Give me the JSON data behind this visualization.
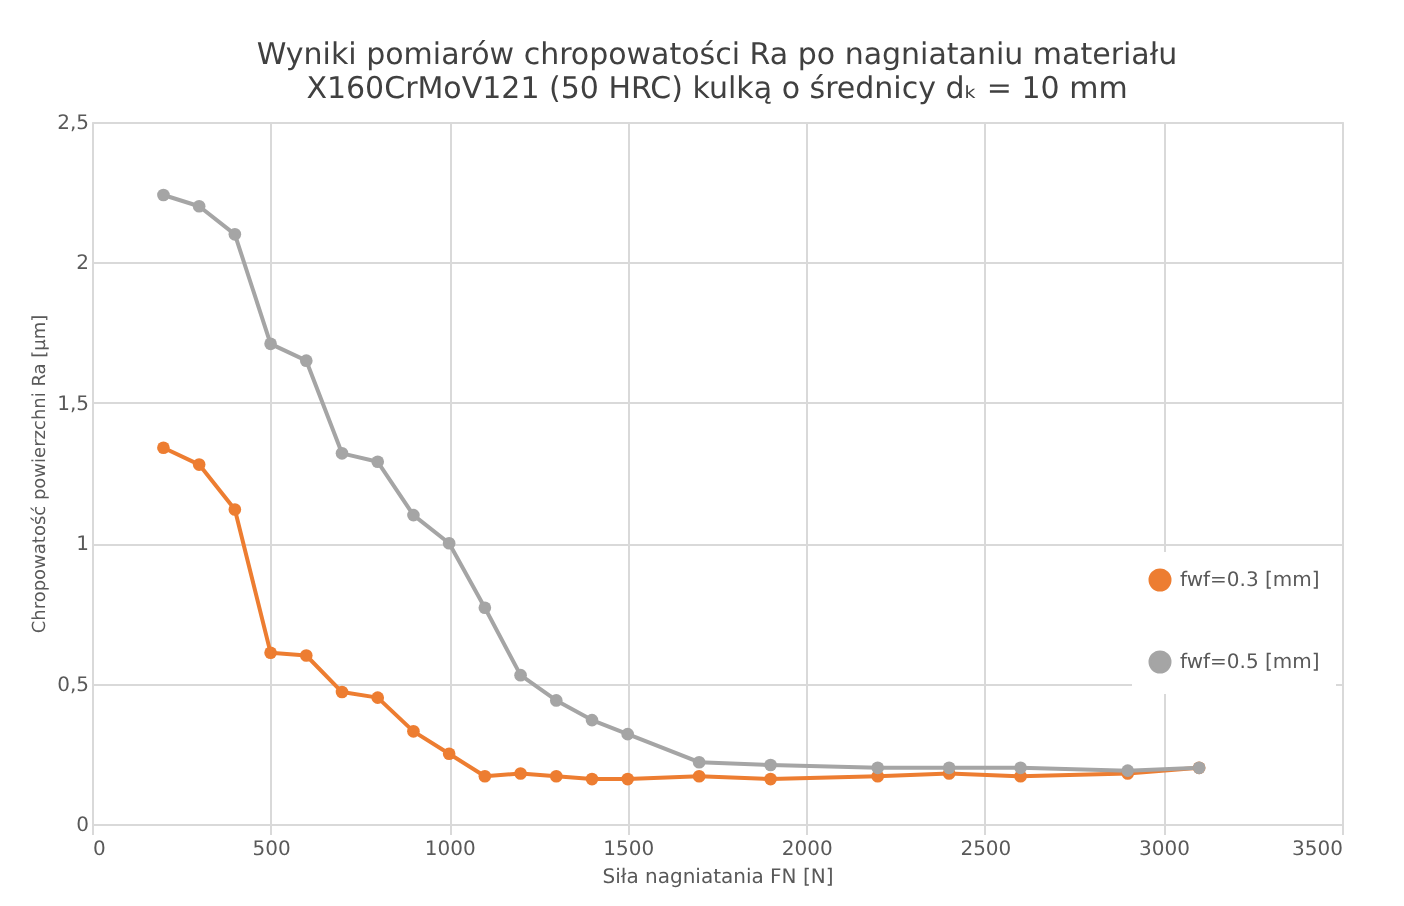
{
  "chart_data": {
    "type": "line",
    "title": [
      "Wyniki pomiarów chropowatości Ra po nagniataniu materiału",
      "X160CrMoV121 (50 HRC) kulką o średnicy dₖ = 10 mm"
    ],
    "xlabel": "Siła nagniatania FN [N]",
    "ylabel": "Chropowatość powierzchni Ra [µm]",
    "x": [
      200,
      300,
      400,
      500,
      600,
      700,
      800,
      900,
      1000,
      1100,
      1200,
      1300,
      1400,
      1500,
      1700,
      1900,
      2200,
      2400,
      2600,
      2900,
      3100
    ],
    "series": [
      {
        "name": "fwf=0.3 [mm]",
        "color": "#ed7d31",
        "values": [
          1.34,
          1.28,
          1.12,
          0.61,
          0.6,
          0.47,
          0.45,
          0.33,
          0.25,
          0.17,
          0.18,
          0.17,
          0.16,
          0.16,
          0.17,
          0.16,
          0.17,
          0.18,
          0.17,
          0.18,
          0.2
        ]
      },
      {
        "name": "fwf=0.5 [mm]",
        "color": "#a5a5a5",
        "values": [
          2.24,
          2.2,
          2.1,
          1.71,
          1.65,
          1.32,
          1.29,
          1.1,
          1.0,
          0.77,
          0.53,
          0.44,
          0.37,
          0.32,
          0.22,
          0.21,
          0.2,
          0.2,
          0.2,
          0.19,
          0.2
        ]
      }
    ],
    "xlim": [
      0,
      3500
    ],
    "xticks": [
      0,
      500,
      1000,
      1500,
      2000,
      2500,
      3000,
      3500
    ],
    "ylim": [
      0,
      2.5
    ],
    "yticks": [
      0,
      {
        "value": 0.5,
        "label": "0,5"
      },
      1,
      {
        "value": 1.5,
        "label": "1,5"
      },
      2,
      {
        "value": 2.5,
        "label": "2,5"
      }
    ],
    "grid": true,
    "legend": "right",
    "marker": "circle",
    "line_style": "solid"
  }
}
